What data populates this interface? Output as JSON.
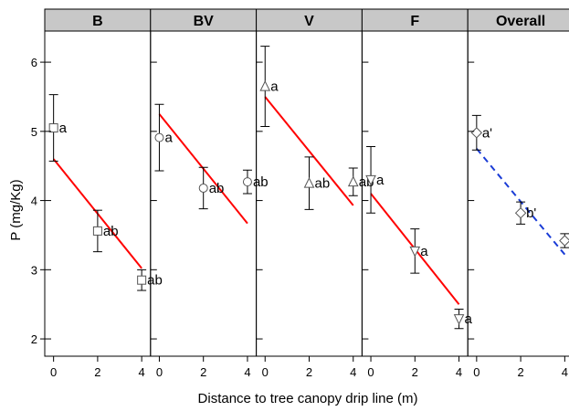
{
  "chart_data": {
    "type": "scatter",
    "xlabel": "Distance to tree canopy drip line (m)",
    "ylabel": "P (mg/Kg)",
    "ylim": [
      1.75,
      6.45
    ],
    "yticks": [
      2,
      3,
      4,
      5,
      6
    ],
    "xlim": [
      -0.4,
      4.4
    ],
    "xticks": [
      0,
      2,
      4
    ],
    "colors": {
      "fit_line": "#ff0000",
      "overall_fit": "#1a3cd6",
      "strip_bg": "#c8c8c8",
      "marker_stroke": "#555555",
      "errorbar": "#000000"
    },
    "panels": [
      {
        "name": "B",
        "marker": "square",
        "points": [
          {
            "x": 0,
            "y": 5.05,
            "err": 0.48,
            "label": "a"
          },
          {
            "x": 2,
            "y": 3.56,
            "err": 0.3,
            "label": "ab"
          },
          {
            "x": 4,
            "y": 2.85,
            "err": 0.15,
            "label": "ab"
          }
        ],
        "fit": {
          "x": [
            0,
            4
          ],
          "y": [
            4.6,
            3.02
          ]
        }
      },
      {
        "name": "BV",
        "marker": "circle",
        "points": [
          {
            "x": 0,
            "y": 4.91,
            "err": 0.48,
            "label": "a"
          },
          {
            "x": 2,
            "y": 4.18,
            "err": 0.3,
            "label": "ab"
          },
          {
            "x": 4,
            "y": 4.27,
            "err": 0.17,
            "label": "ab"
          }
        ],
        "fit": {
          "x": [
            0,
            4
          ],
          "y": [
            5.25,
            3.67
          ]
        }
      },
      {
        "name": "V",
        "marker": "triangle-up",
        "points": [
          {
            "x": 0,
            "y": 5.65,
            "err": 0.58,
            "label": "a"
          },
          {
            "x": 2,
            "y": 4.25,
            "err": 0.38,
            "label": "ab"
          },
          {
            "x": 4,
            "y": 4.27,
            "err": 0.2,
            "label": "ab"
          }
        ],
        "fit": {
          "x": [
            0,
            4
          ],
          "y": [
            5.5,
            3.93
          ]
        }
      },
      {
        "name": "F",
        "marker": "triangle-down",
        "points": [
          {
            "x": 0,
            "y": 4.3,
            "err": 0.48,
            "label": "a"
          },
          {
            "x": 2,
            "y": 3.27,
            "err": 0.32,
            "label": "a"
          },
          {
            "x": 4,
            "y": 2.29,
            "err": 0.14,
            "label": "a"
          }
        ],
        "fit": {
          "x": [
            0,
            4
          ],
          "y": [
            4.1,
            2.5
          ]
        }
      },
      {
        "name": "Overall",
        "marker": "diamond",
        "points": [
          {
            "x": 0,
            "y": 4.98,
            "err": 0.25,
            "label": "a'"
          },
          {
            "x": 2,
            "y": 3.82,
            "err": 0.16,
            "label": "b'"
          },
          {
            "x": 4,
            "y": 3.42,
            "err": 0.1,
            "label": ""
          }
        ],
        "fit": {
          "x": [
            0,
            4
          ],
          "y": [
            4.75,
            3.22
          ]
        },
        "fit_style": "dashed"
      }
    ]
  }
}
